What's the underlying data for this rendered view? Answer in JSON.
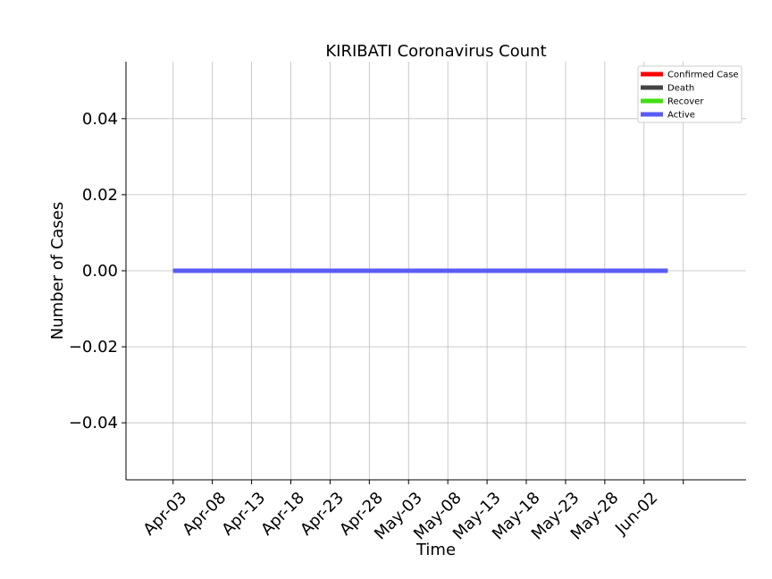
{
  "chart_data": {
    "type": "line",
    "title": "KIRIBATI Coronavirus Count",
    "xlabel": "Time",
    "ylabel": "Number of Cases",
    "x_start": "2020-04-03",
    "x_end": "2020-06-05",
    "xlim": [
      "2020-03-28",
      "2020-06-15"
    ],
    "ylim": [
      -0.055,
      0.055
    ],
    "x_ticks": [
      "Apr-03",
      "Apr-08",
      "Apr-13",
      "Apr-18",
      "Apr-23",
      "Apr-28",
      "May-03",
      "May-08",
      "May-13",
      "May-18",
      "May-23",
      "May-28",
      "Jun-02"
    ],
    "y_ticks": [
      "0.04",
      "0.02",
      "0.00",
      "−0.02",
      "−0.04"
    ],
    "y_tick_values": [
      0.04,
      0.02,
      0.0,
      -0.02,
      -0.04
    ],
    "grid": true,
    "legend_position": "top-right",
    "series": [
      {
        "name": "Confirmed Case",
        "color": "#ff0000",
        "values": "all zero"
      },
      {
        "name": "Death",
        "color": "#444444",
        "values": "all zero"
      },
      {
        "name": "Recover",
        "color": "#44dd11",
        "values": "all zero"
      },
      {
        "name": "Active",
        "color": "#5b5bf5",
        "values": "all zero"
      }
    ]
  }
}
